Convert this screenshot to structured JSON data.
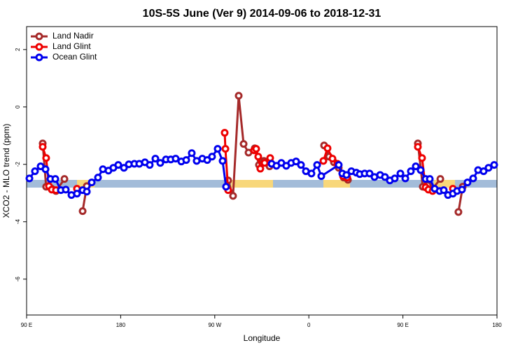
{
  "chart_data": {
    "type": "line",
    "title": "10S-5S June (Ver 9)   2014-09-06 to 2018-12-31",
    "x_label": "Longitude",
    "y_label": "XCO2 - MLO trend (ppm)",
    "xlim": [
      90,
      540
    ],
    "xticks": [
      {
        "value": 90,
        "label": "90 E"
      },
      180,
      {
        "value": 270,
        "label": "90 W"
      },
      {
        "value": 360,
        "label": "0"
      },
      {
        "value": 450,
        "label": "90 E"
      },
      {
        "value": 540,
        "label": "180"
      }
    ],
    "ylim": [
      -7.25,
      2.8
    ],
    "yticks": [
      -6,
      -4,
      -2,
      0,
      2
    ],
    "grid": false,
    "legend": "topleft",
    "series": [
      {
        "name": "Land Nadir",
        "color": "#a52a2a",
        "x": [
          105.4,
          108.7,
          114.1,
          118.1,
          126.2,
          null,
          143.6,
          147.6,
          null,
          282.8,
          287.5,
          292.9,
          297.6,
          302.3,
          308.3,
          312.3,
          317.0,
          322.4,
          null,
          374.6,
          379.3,
          384.0,
          388.6,
          393.3,
          397.4,
          null,
          464.3,
          469.0,
          473.7,
          478.4,
          485.8,
          null,
          503.1,
          507.2
        ],
        "values": [
          -1.27,
          -2.78,
          -2.85,
          -2.93,
          -2.51,
          null,
          -3.63,
          -2.76,
          null,
          -2.56,
          -3.1,
          0.39,
          -1.29,
          -1.59,
          -1.44,
          -2.02,
          -1.88,
          -2.07,
          null,
          -1.34,
          -1.73,
          -1.93,
          -2.12,
          -2.46,
          -2.54,
          null,
          -1.27,
          -2.78,
          -2.73,
          -2.85,
          -2.51,
          null,
          -3.66,
          -2.78
        ]
      },
      {
        "name": "Land Glint",
        "color": "#ee0000",
        "x": [
          105.4,
          108.7,
          111.4,
          114.1,
          118.1,
          null,
          138.2,
          null,
          279.5,
          280.2,
          282.8,
          null,
          307.6,
          309.6,
          311.6,
          313.6,
          317.7,
          323.0,
          null,
          373.9,
          377.9,
          382.6,
          387.3,
          392.7,
          396.7,
          null,
          464.3,
          468.3,
          471.7,
          474.4,
          478.4,
          null,
          497.8
        ],
        "values": [
          -1.39,
          -1.78,
          -2.76,
          -2.88,
          -2.9,
          null,
          -2.85,
          null,
          -0.9,
          -1.46,
          -2.9,
          null,
          -1.51,
          -1.46,
          -1.73,
          -2.15,
          -1.95,
          -1.78,
          null,
          -1.88,
          -1.44,
          -1.8,
          -1.98,
          -2.41,
          -2.46,
          null,
          -1.39,
          -1.78,
          -2.8,
          -2.88,
          -2.93,
          null,
          -2.85
        ]
      },
      {
        "name": "Ocean Glint",
        "color": "#0000ee",
        "x": [
          92.7,
          98.0,
          103.4,
          108.1,
          112.8,
          117.5,
          122.8,
          127.5,
          132.9,
          138.2,
          143.6,
          147.6,
          152.3,
          158.3,
          163.0,
          168.3,
          173.0,
          177.7,
          183.1,
          187.8,
          193.1,
          197.8,
          203.2,
          207.8,
          213.2,
          217.9,
          223.3,
          227.9,
          232.6,
          238.0,
          242.7,
          248.0,
          252.7,
          258.1,
          262.8,
          267.4,
          272.8,
          277.5,
          280.8,
          null,
          324.4,
          329.0,
          333.7,
          338.4,
          343.1,
          347.8,
          352.5,
          357.2,
          362.5,
          367.9,
          371.9,
          388.6,
          392.0,
          396.0,
          400.7,
          405.4,
          408.7,
          413.4,
          418.1,
          422.8,
          428.2,
          432.8,
          437.5,
          442.2,
          447.6,
          452.3,
          457.6,
          462.3,
          467.0,
          471.7,
          475.7,
          480.4,
          485.1,
          489.1,
          493.1,
          497.8,
          501.8,
          506.5,
          511.8,
          517.2,
          521.9,
          527.2,
          531.9,
          537.3
        ],
        "values": [
          -2.49,
          -2.24,
          -2.07,
          -2.17,
          -2.51,
          -2.51,
          -2.9,
          -2.88,
          -3.07,
          -3.02,
          -2.9,
          -2.95,
          -2.63,
          -2.46,
          -2.17,
          -2.22,
          -2.12,
          -2.02,
          -2.12,
          -2.0,
          -1.98,
          -1.98,
          -1.93,
          -2.02,
          -1.8,
          -1.95,
          -1.83,
          -1.83,
          -1.8,
          -1.9,
          -1.85,
          -1.61,
          -1.88,
          -1.8,
          -1.85,
          -1.73,
          -1.46,
          -1.88,
          -2.78,
          null,
          -1.98,
          -2.05,
          -1.95,
          -2.05,
          -1.95,
          -1.9,
          -2.02,
          -2.24,
          -2.32,
          -2.02,
          -2.41,
          -2.02,
          -2.32,
          -2.37,
          -2.24,
          -2.29,
          -2.34,
          -2.32,
          -2.32,
          -2.44,
          -2.37,
          -2.44,
          -2.56,
          -2.49,
          -2.32,
          -2.49,
          -2.24,
          -2.07,
          -2.2,
          -2.51,
          -2.51,
          -2.85,
          -2.93,
          -2.9,
          -3.07,
          -3.02,
          -2.93,
          -2.88,
          -2.63,
          -2.49,
          -2.2,
          -2.24,
          -2.12,
          -2.02
        ]
      }
    ]
  }
}
